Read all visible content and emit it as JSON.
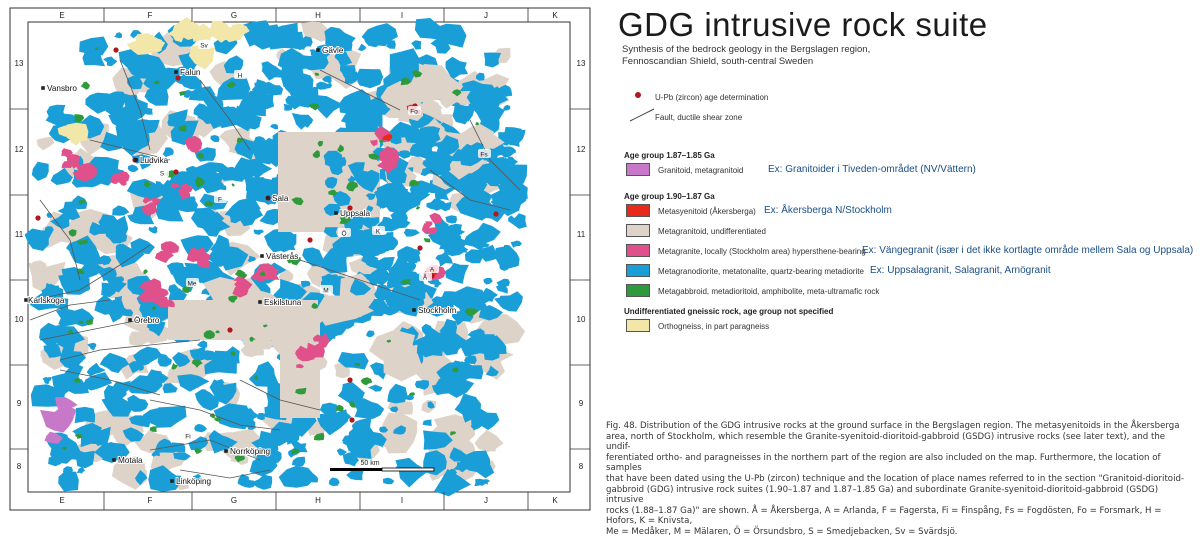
{
  "title": "GDG intrusive rock suite",
  "subtitle": [
    "Synthesis of the bedrock geology in the Bergslagen region,",
    "Fennoscandian Shield, south-central Sweden"
  ],
  "colors": {
    "granitoid_metagranitoid": "#c878c8",
    "metasyenitoid": "#e82a1c",
    "metagranitoid_undiff": "#ded3c8",
    "metagranite_hypersthene": "#e0508a",
    "metagranodiorite": "#1a9ed8",
    "metagabbroid": "#2e9a3c",
    "orthogneiss": "#f2e6a8",
    "age_point": "#b0181e",
    "fault": "#555555"
  },
  "map": {
    "grid_columns": [
      "E",
      "F",
      "G",
      "H",
      "I",
      "J",
      "K"
    ],
    "grid_rows": [
      "13",
      "12",
      "11",
      "10",
      "9",
      "8"
    ],
    "scale_label": "50 km",
    "places": [
      {
        "name": "Vansbro"
      },
      {
        "name": "Falun"
      },
      {
        "name": "Gävle"
      },
      {
        "name": "Ludvika"
      },
      {
        "name": "Sala"
      },
      {
        "name": "Uppsala"
      },
      {
        "name": "Västerås"
      },
      {
        "name": "Karlskoga"
      },
      {
        "name": "Örebro"
      },
      {
        "name": "Eskilstuna"
      },
      {
        "name": "Stockholm"
      },
      {
        "name": "Norrköping"
      },
      {
        "name": "Motala"
      },
      {
        "name": "Linköping"
      }
    ],
    "map_labels": [
      "Sv",
      "Fo",
      "Fs",
      "K",
      "A",
      "Me",
      "M",
      "Ö",
      "Fi",
      "S",
      "H",
      "F",
      "Å"
    ]
  },
  "legend": {
    "age_point": "U-Pb (zircon) age determination",
    "fault": "Fault, ductile shear zone",
    "groups": [
      {
        "heading": "Age group 1.87–1.85 Ga",
        "items": [
          {
            "label": "Granitoid, metagranitoid",
            "example": "Ex: Granitoider i Tiveden-området (NV/Vättern)",
            "color_key": "granitoid_metagranitoid"
          }
        ]
      },
      {
        "heading": "Age group 1.90–1.87 Ga",
        "items": [
          {
            "label": "Metasyenitoid (Åkersberga)",
            "example": "Ex: Åkersberga N/Stockholm",
            "color_key": "metasyenitoid"
          },
          {
            "label": "Metagranitoid, undifferentiated",
            "example": "",
            "color_key": "metagranitoid_undiff"
          },
          {
            "label": "Metagranite, locally (Stockholm area) hypersthene-bearing",
            "example": "Ex: Vängegranit (især i det ikke kortlagte område mellem Sala og Uppsala)",
            "color_key": "metagranite_hypersthene"
          },
          {
            "label": "Metagranodiorite, metatonalite, quartz-bearing metadiorite",
            "example": "Ex: Uppsalagranit, Salagranit, Arnögranit",
            "color_key": "metagranodiorite"
          },
          {
            "label": "Metagabbroid, metadioritoid, amphibolite, meta-ultramafic rock",
            "example": "",
            "color_key": "metagabbroid"
          }
        ]
      },
      {
        "heading": "Undifferentiated gneissic rock, age group not specified",
        "items": [
          {
            "label": "Orthogneiss, in part paragneiss",
            "example": "",
            "color_key": "orthogneiss"
          }
        ]
      }
    ]
  },
  "caption": [
    "Fig. 48. Distribution of the GDG intrusive rocks at the ground surface in the Bergslagen region. The metasyenitoids in the Åkersberga",
    "area, north of Stockholm, which resemble the Granite-syenitoid-dioritoid-gabbroid (GSDG) intrusive rocks (see later text), and the undif-",
    "ferentiated ortho- and paragneisses in the northern part of the region are also included on the map. Furthermore, the location of samples",
    "that have been dated using the U-Pb (zircon) technique and the location of place names referred to in the section \"Granitoid-dioritoid-",
    "gabbroid (GDG) intrusive rock suites (1.90–1.87 and 1.87–1.85 Ga) and subordinate Granite-syenitoid-dioritoid-gabbroid (GSDG) intrusive",
    "rocks (1.88–1.87 Ga)\" are shown. Å = Åkersberga, A = Arlanda, F = Fagersta, Fi = Finspång, Fs = Fogdösten, Fo = Forsmark, H = Hofors, K = Knivsta,",
    "Me = Medåker, M = Mälaren, Ö = Örsundsbro, S = Smedjebacken, Sv = Svärdsjö."
  ]
}
